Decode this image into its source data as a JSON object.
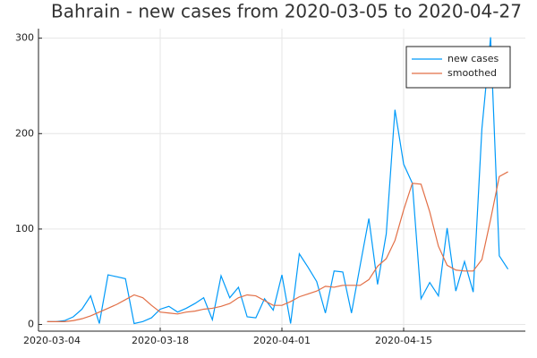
{
  "chart_data": {
    "type": "line",
    "title": "Bahrain - new cases from 2020-03-05 to 2020-04-27",
    "x": [
      "2020-03-05",
      "2020-03-06",
      "2020-03-07",
      "2020-03-08",
      "2020-03-09",
      "2020-03-10",
      "2020-03-11",
      "2020-03-12",
      "2020-03-13",
      "2020-03-14",
      "2020-03-15",
      "2020-03-16",
      "2020-03-17",
      "2020-03-18",
      "2020-03-19",
      "2020-03-20",
      "2020-03-21",
      "2020-03-22",
      "2020-03-23",
      "2020-03-24",
      "2020-03-25",
      "2020-03-26",
      "2020-03-27",
      "2020-03-28",
      "2020-03-29",
      "2020-03-30",
      "2020-03-31",
      "2020-04-01",
      "2020-04-02",
      "2020-04-03",
      "2020-04-04",
      "2020-04-05",
      "2020-04-06",
      "2020-04-07",
      "2020-04-08",
      "2020-04-09",
      "2020-04-10",
      "2020-04-11",
      "2020-04-12",
      "2020-04-13",
      "2020-04-14",
      "2020-04-15",
      "2020-04-16",
      "2020-04-17",
      "2020-04-18",
      "2020-04-19",
      "2020-04-20",
      "2020-04-21",
      "2020-04-22",
      "2020-04-23",
      "2020-04-24",
      "2020-04-25",
      "2020-04-26",
      "2020-04-27"
    ],
    "series": [
      {
        "name": "new cases",
        "color": "#009af9",
        "values": [
          3,
          3,
          4,
          8,
          16,
          30,
          1,
          52,
          50,
          48,
          1,
          3,
          7,
          16,
          19,
          13,
          17,
          22,
          28,
          5,
          51,
          28,
          39,
          8,
          7,
          27,
          15,
          52,
          1,
          74,
          60,
          45,
          12,
          56,
          55,
          12,
          62,
          111,
          42,
          95,
          225,
          168,
          148,
          27,
          44,
          30,
          101,
          35,
          66,
          34,
          205,
          301,
          72,
          58
        ]
      },
      {
        "name": "smoothed",
        "color": "#e26f46",
        "values": [
          3,
          3,
          3,
          4,
          6,
          9,
          13,
          17,
          21,
          26,
          31,
          28,
          20,
          13,
          12,
          11,
          13,
          14,
          16,
          17,
          19,
          22,
          28,
          31,
          30,
          25,
          20,
          20,
          24,
          29,
          32,
          35,
          40,
          39,
          41,
          41,
          41,
          47,
          61,
          69,
          88,
          120,
          148,
          147,
          118,
          82,
          62,
          57,
          56,
          56,
          68,
          110,
          155,
          160
        ]
      }
    ],
    "xlim": [
      "2020-03-04",
      "2020-04-29"
    ],
    "xticks": [
      "2020-03-04",
      "2020-03-18",
      "2020-04-01",
      "2020-04-15"
    ],
    "ylim": [
      -7,
      310
    ],
    "yticks": [
      0,
      100,
      200,
      300
    ],
    "grid": true,
    "legend": "top-right"
  }
}
